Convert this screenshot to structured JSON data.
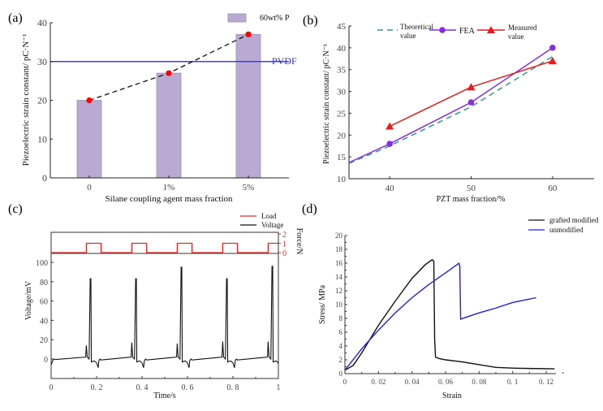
{
  "chart_data": [
    {
      "panel": "(a)",
      "type": "bar",
      "title": "",
      "xlabel": "Silane coupling agent mass fraction",
      "ylabel": "Piezoelectric strain constant/ pC·N⁻¹",
      "categories": [
        "0",
        "1%",
        "5%"
      ],
      "ylim": [
        0,
        40
      ],
      "yticks": [
        0,
        10,
        20,
        30,
        40
      ],
      "series": [
        {
          "name": "60wt% P",
          "values": [
            20,
            27,
            37
          ],
          "color": "#b9a9d3"
        }
      ],
      "trend_line": {
        "values": [
          20,
          27,
          37
        ],
        "style": "dashed",
        "marker_color": "#ff0000"
      },
      "reference_line": {
        "label": "PVDF",
        "value": 30,
        "color": "#4040e0"
      },
      "legend": "top-right"
    },
    {
      "panel": "(b)",
      "type": "line",
      "xlabel": "PZT mass fraction/%",
      "ylabel": "Piezoelectric strain constant/ pC·N⁻¹",
      "xlim": [
        35,
        65
      ],
      "ylim": [
        10,
        45
      ],
      "xticks": [
        40,
        50,
        60
      ],
      "yticks": [
        10,
        15,
        20,
        25,
        30,
        35,
        40,
        45
      ],
      "series": [
        {
          "name": "Theoretical value",
          "style": "dashed",
          "color": "#2a9d8f",
          "x": [
            35,
            40,
            50,
            60
          ],
          "values": [
            13.5,
            17.5,
            26.5,
            38
          ]
        },
        {
          "name": "FEA",
          "style": "solid",
          "marker": "circle",
          "color": "#8a2be2",
          "x": [
            35,
            40,
            50,
            60
          ],
          "values": [
            13.7,
            18,
            27.5,
            40
          ]
        },
        {
          "name": "Measured value",
          "style": "solid",
          "marker": "triangle",
          "color": "#e81c1c",
          "x": [
            40,
            50,
            60
          ],
          "values": [
            22,
            31,
            37
          ]
        }
      ],
      "legend": "top"
    },
    {
      "panel": "(c)",
      "type": "line",
      "xlabel": "Time/s",
      "ylabel": "Voltage/mV",
      "y2label": "Force/N",
      "xlim": [
        0,
        1
      ],
      "ylim": [
        -20,
        105
      ],
      "y2lim": [
        0,
        2
      ],
      "xticks": [
        "0",
        "0. 2",
        "0. 4",
        "0. 6",
        "0. 8",
        "1"
      ],
      "yticks": [
        0,
        20,
        40,
        60,
        80,
        100
      ],
      "y2ticks": [
        0,
        1,
        2
      ],
      "load_pulses": [
        [
          0.155,
          0.22
        ],
        [
          0.355,
          0.42
        ],
        [
          0.555,
          0.62
        ],
        [
          0.755,
          0.82
        ],
        [
          0.955,
          1.0
        ]
      ],
      "voltage_peaks": [
        83,
        83,
        95,
        83,
        96
      ],
      "voltage_pre_spikes": [
        14,
        17,
        16,
        18,
        18
      ],
      "series": [
        {
          "name": "Load",
          "color": "#ff2020"
        },
        {
          "name": "Voltage",
          "color": "#111111"
        }
      ],
      "legend": "top-right"
    },
    {
      "panel": "(d)",
      "type": "line",
      "xlabel": "Strain",
      "ylabel": "Stress/ MPa",
      "xlim": [
        0,
        0.13
      ],
      "ylim": [
        0,
        20
      ],
      "xticks": [
        "0",
        "0. 02",
        "0. 04",
        "0. 06",
        "0. 08",
        "0. 1",
        "0. 12"
      ],
      "yticks": [
        0,
        2,
        4,
        6,
        8,
        10,
        12,
        14,
        16,
        18,
        20
      ],
      "series": [
        {
          "name": "grafted modified",
          "color": "#111111",
          "x": [
            0,
            0.005,
            0.01,
            0.02,
            0.03,
            0.04,
            0.048,
            0.052,
            0.053,
            0.0535,
            0.054,
            0.056,
            0.06,
            0.07,
            0.08,
            0.09,
            0.1,
            0.11,
            0.125
          ],
          "values": [
            0.5,
            1.2,
            3.0,
            7.0,
            10.5,
            13.8,
            15.8,
            16.5,
            16.3,
            5,
            2.4,
            2.2,
            2.0,
            1.7,
            1.3,
            0.9,
            0.8,
            0.75,
            0.7
          ]
        },
        {
          "name": "unmodified",
          "color": "#2020e0",
          "x": [
            0,
            0.01,
            0.02,
            0.03,
            0.04,
            0.05,
            0.06,
            0.068,
            0.0685,
            0.069,
            0.08,
            0.09,
            0.1,
            0.114
          ],
          "values": [
            0.5,
            3.6,
            6.3,
            8.8,
            11.0,
            12.9,
            14.6,
            16.0,
            15.5,
            7.9,
            8.8,
            9.5,
            10.3,
            11.0
          ]
        }
      ],
      "legend": "top-right"
    }
  ],
  "labels": {
    "panel_a": "(a)",
    "panel_b": "(b)",
    "panel_c": "(c)",
    "panel_d": "(d)",
    "a_legend": "60wt% P",
    "a_ref": "PVDF",
    "a_xlabel": "Silane coupling agent mass fraction",
    "a_ylabel": "Piezoelectric strain constant/ pC·N⁻¹",
    "b_xlabel": "PZT mass fraction/%",
    "b_ylabel": "Piezoelectric strain constant/ pC·N⁻¹",
    "b_leg_theory_1": "Theoretical",
    "b_leg_theory_2": "value",
    "b_leg_fea": "FEA",
    "b_leg_meas_1": "Measured",
    "b_leg_meas_2": "value",
    "c_xlabel": "Time/s",
    "c_ylabel": "Voltage/mV",
    "c_y2label": "Force/N",
    "c_leg_load": "Load",
    "c_leg_voltage": "Voltage",
    "d_xlabel": "Strain",
    "d_ylabel": "Stress/ MPa",
    "d_leg_grafted": "grafted modified",
    "d_leg_unmod": "unmodified"
  }
}
